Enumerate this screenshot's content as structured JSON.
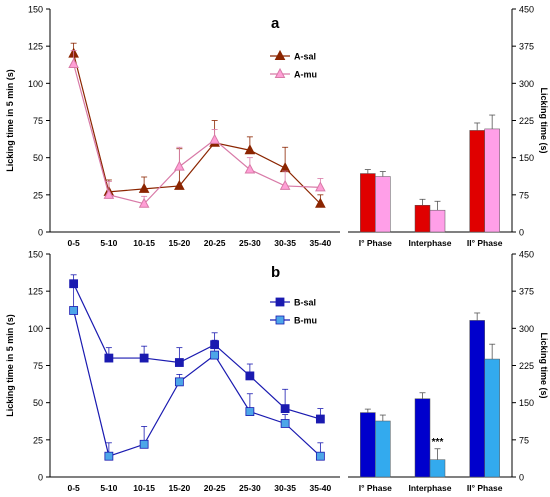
{
  "figure": {
    "panel_labels": [
      "a",
      "b"
    ]
  },
  "chart_data": [
    {
      "id": "a-line",
      "type": "line",
      "panel": "a",
      "title": "",
      "xlabel": "",
      "ylabel": "Licking time in 5 min (s)",
      "ylim": [
        0,
        150
      ],
      "yticks": [
        0,
        25,
        50,
        75,
        100,
        125,
        150
      ],
      "categories": [
        "0-5",
        "5-10",
        "10-15",
        "15-20",
        "20-25",
        "25-30",
        "30-35",
        "35-40"
      ],
      "legend_position": "top-right",
      "series": [
        {
          "name": "A-sal",
          "color": "#8b2500",
          "marker": "filled-triangle",
          "values": [
            120,
            27,
            29,
            31,
            60,
            55,
            43,
            19
          ],
          "errors": [
            7,
            8,
            8,
            25,
            15,
            9,
            14,
            6
          ]
        },
        {
          "name": "A-mu",
          "color": "#d87aa7",
          "fill": "#ff9fd6",
          "marker": "open-triangle",
          "values": [
            113,
            25,
            19,
            44,
            62,
            42,
            31,
            30
          ],
          "errors": [
            9,
            9,
            5,
            13,
            7,
            8,
            10,
            6
          ]
        }
      ]
    },
    {
      "id": "a-bar",
      "type": "bar",
      "panel": "a",
      "title": "",
      "xlabel": "",
      "ylabel": "Licking time (s)",
      "ylim": [
        0,
        450
      ],
      "yticks": [
        0,
        75,
        150,
        225,
        300,
        375,
        450
      ],
      "categories": [
        "I° Phase",
        "Interphase",
        "II° Phase"
      ],
      "series": [
        {
          "name": "A-sal",
          "color": "#e00000",
          "values": [
            118,
            54,
            205
          ],
          "errors": [
            8,
            12,
            15
          ]
        },
        {
          "name": "A-mu",
          "color": "#ff9fe8",
          "values": [
            112,
            44,
            208
          ],
          "errors": [
            10,
            18,
            28
          ]
        }
      ]
    },
    {
      "id": "b-line",
      "type": "line",
      "panel": "b",
      "title": "",
      "xlabel": "",
      "ylabel": "Licking time in 5 min (s)",
      "ylim": [
        0,
        150
      ],
      "yticks": [
        0,
        25,
        50,
        75,
        100,
        125,
        150
      ],
      "categories": [
        "0-5",
        "5-10",
        "10-15",
        "15-20",
        "20-25",
        "25-30",
        "30-35",
        "35-40"
      ],
      "legend_position": "top-right",
      "series": [
        {
          "name": "B-sal",
          "color": "#1a1ab0",
          "fill": "#1a1ab0",
          "marker": "filled-square",
          "values": [
            130,
            80,
            80,
            77,
            89,
            68,
            46,
            39
          ],
          "errors": [
            6,
            7,
            8,
            10,
            8,
            8,
            13,
            7
          ]
        },
        {
          "name": "B-mu",
          "color": "#1a1ab0",
          "fill": "#4da6e8",
          "marker": "light-square",
          "values": [
            112,
            14,
            22,
            64,
            82,
            44,
            36,
            14
          ],
          "errors": [
            17,
            9,
            12,
            5,
            10,
            12,
            6,
            9
          ]
        }
      ]
    },
    {
      "id": "b-bar",
      "type": "bar",
      "panel": "b",
      "title": "",
      "xlabel": "",
      "ylabel": "Licking time (s)",
      "ylim": [
        0,
        450
      ],
      "yticks": [
        0,
        75,
        150,
        225,
        300,
        375,
        450
      ],
      "categories": [
        "I° Phase",
        "Interphase",
        "II° Phase"
      ],
      "annotations": [
        {
          "text": "***",
          "category": "Interphase",
          "series": "B-mu"
        }
      ],
      "series": [
        {
          "name": "B-sal",
          "color": "#0000cc",
          "values": [
            130,
            158,
            316
          ],
          "errors": [
            7,
            12,
            15
          ]
        },
        {
          "name": "B-mu",
          "color": "#33aaee",
          "values": [
            113,
            35,
            238
          ],
          "errors": [
            12,
            22,
            30
          ]
        }
      ]
    }
  ]
}
